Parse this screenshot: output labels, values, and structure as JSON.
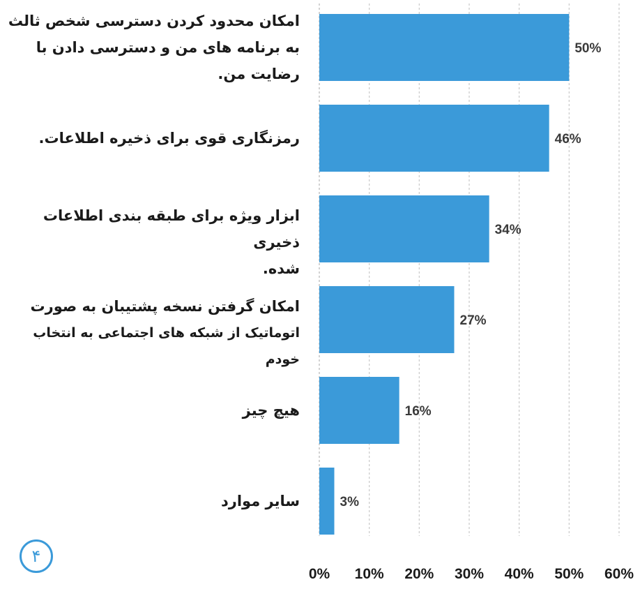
{
  "chart_data": {
    "type": "bar",
    "orientation": "horizontal",
    "categories": [
      [
        "امکان محدود کردن دسترسی شخص ثالث",
        "به برنامه های من و دسترسی دادن با",
        "رضایت من."
      ],
      [
        "رمزنگاری قوی برای ذخیره اطلاعات."
      ],
      [
        "ابزار ویژه برای طبقه بندی اطلاعات ذخیری",
        "شده."
      ],
      [
        "امکان گرفتن نسخه پشتیبان به صورت",
        "اتوماتیک از شبکه های اجتماعی به انتخاب خودم"
      ],
      [
        "هیچ چیز"
      ],
      [
        "سایر موارد"
      ]
    ],
    "values": [
      50,
      46,
      34,
      27,
      16,
      3
    ],
    "value_labels": [
      "50%",
      "46%",
      "34%",
      "27%",
      "16%",
      "3%"
    ],
    "xticks": [
      "0%",
      "10%",
      "20%",
      "30%",
      "40%",
      "50%",
      "60%"
    ],
    "xlim": [
      0,
      60
    ],
    "grid": "vertical dashed",
    "bar_color": "#3b9ad9"
  },
  "page_number": "۴"
}
